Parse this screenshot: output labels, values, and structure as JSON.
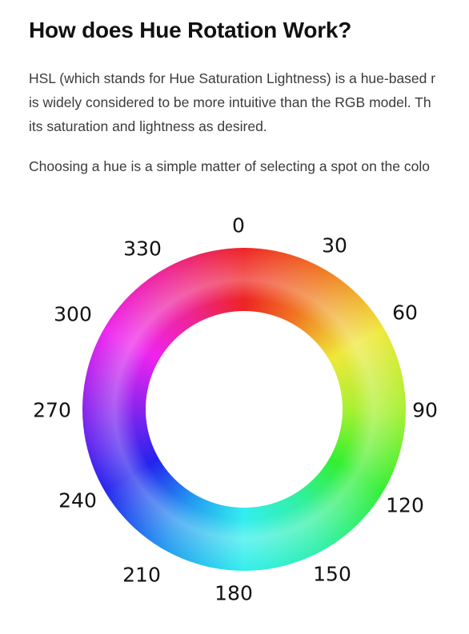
{
  "title": "How does Hue Rotation Work?",
  "paragraph1": {
    "line1": "HSL (which stands for Hue Saturation Lightness) is a hue-based r",
    "line2": "is widely considered to be more intuitive than the RGB model. Th",
    "line3": "its saturation and lightness as desired."
  },
  "paragraph2": "Choosing a hue is a simple matter of selecting a spot on the colo",
  "hue_wheel": {
    "labels": [
      "0",
      "30",
      "60",
      "90",
      "120",
      "150",
      "180",
      "210",
      "240",
      "270",
      "300",
      "330"
    ],
    "colors": {
      "0": "#ee2424",
      "60": "#efe83a",
      "120": "#33ef33",
      "180": "#33eeee",
      "240": "#2424ee",
      "300": "#ee24ee"
    }
  }
}
